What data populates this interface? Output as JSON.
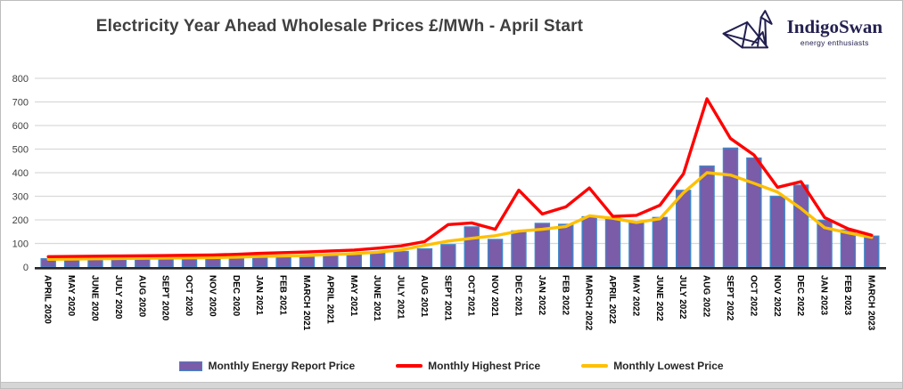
{
  "logo": {
    "name": "IndigoSwan",
    "tagline": "energy enthusiasts",
    "color": "#232050"
  },
  "colors": {
    "bar_fill": "#7a5ca8",
    "bar_border": "#3f88c9",
    "highest_line": "#ff0000",
    "lowest_line": "#ffc000",
    "gridline": "#d9d9d9",
    "axis_line": "#262626",
    "title_text": "#3f3f3f"
  },
  "chart_data": {
    "type": "bar",
    "title": "Electricity Year Ahead Wholesale Prices £/MWh - April Start",
    "xlabel": "",
    "ylabel": "",
    "ylim": [
      0,
      800
    ],
    "yticks": [
      0,
      100,
      200,
      300,
      400,
      500,
      600,
      700,
      800
    ],
    "grid": true,
    "legend_position": "bottom",
    "categories": [
      "APRIL 2020",
      "MAY 2020",
      "JUNE 2020",
      "JULY 2020",
      "AUG 2020",
      "SEPT 2020",
      "OCT 2020",
      "NOV 2020",
      "DEC 2020",
      "JAN 2021",
      "FEB 2021",
      "MARCH 2021",
      "APRIL 2021",
      "MAY 2021",
      "JUNE 2021",
      "JULY 2021",
      "AUG 2021",
      "SEPT 2021",
      "OCT 2021",
      "NOV 2021",
      "DEC 2021",
      "JAN 2022",
      "FEB 2022",
      "MARCH 2022",
      "APRIL 2022",
      "MAY 2022",
      "JUNE 2022",
      "JULY 2022",
      "AUG 2022",
      "SEPT 2022",
      "OCT 2022",
      "NOV 2022",
      "DEC 2022",
      "JAN 2023",
      "FEB 2023",
      "MARCH 2023"
    ],
    "series": [
      {
        "name": "Monthly Energy Report Price",
        "type": "bar",
        "color": "#7a5ca8",
        "border_color": "#3f88c9",
        "values": [
          35,
          36,
          36,
          38,
          39,
          40,
          41,
          42,
          44,
          46,
          47,
          49,
          54,
          57,
          62,
          66,
          77,
          95,
          170,
          117,
          153,
          185,
          181,
          213,
          206,
          189,
          210,
          325,
          428,
          504,
          462,
          300,
          347,
          198,
          157,
          131
        ]
      },
      {
        "name": "Monthly Highest Price",
        "type": "line",
        "color": "#ff0000",
        "values": [
          44,
          45,
          46,
          47,
          48,
          49,
          50,
          51,
          54,
          58,
          61,
          64,
          68,
          72,
          80,
          90,
          108,
          180,
          187,
          160,
          326,
          225,
          255,
          335,
          215,
          219,
          262,
          395,
          713,
          545,
          475,
          338,
          362,
          210,
          162,
          135
        ]
      },
      {
        "name": "Monthly Lowest Price",
        "type": "line",
        "color": "#ffc000",
        "values": [
          33,
          34,
          35,
          36,
          37,
          38,
          39,
          40,
          42,
          45,
          47,
          49,
          53,
          57,
          63,
          73,
          92,
          110,
          122,
          133,
          152,
          160,
          172,
          217,
          207,
          189,
          205,
          315,
          400,
          390,
          355,
          318,
          248,
          167,
          145,
          126
        ]
      }
    ]
  }
}
